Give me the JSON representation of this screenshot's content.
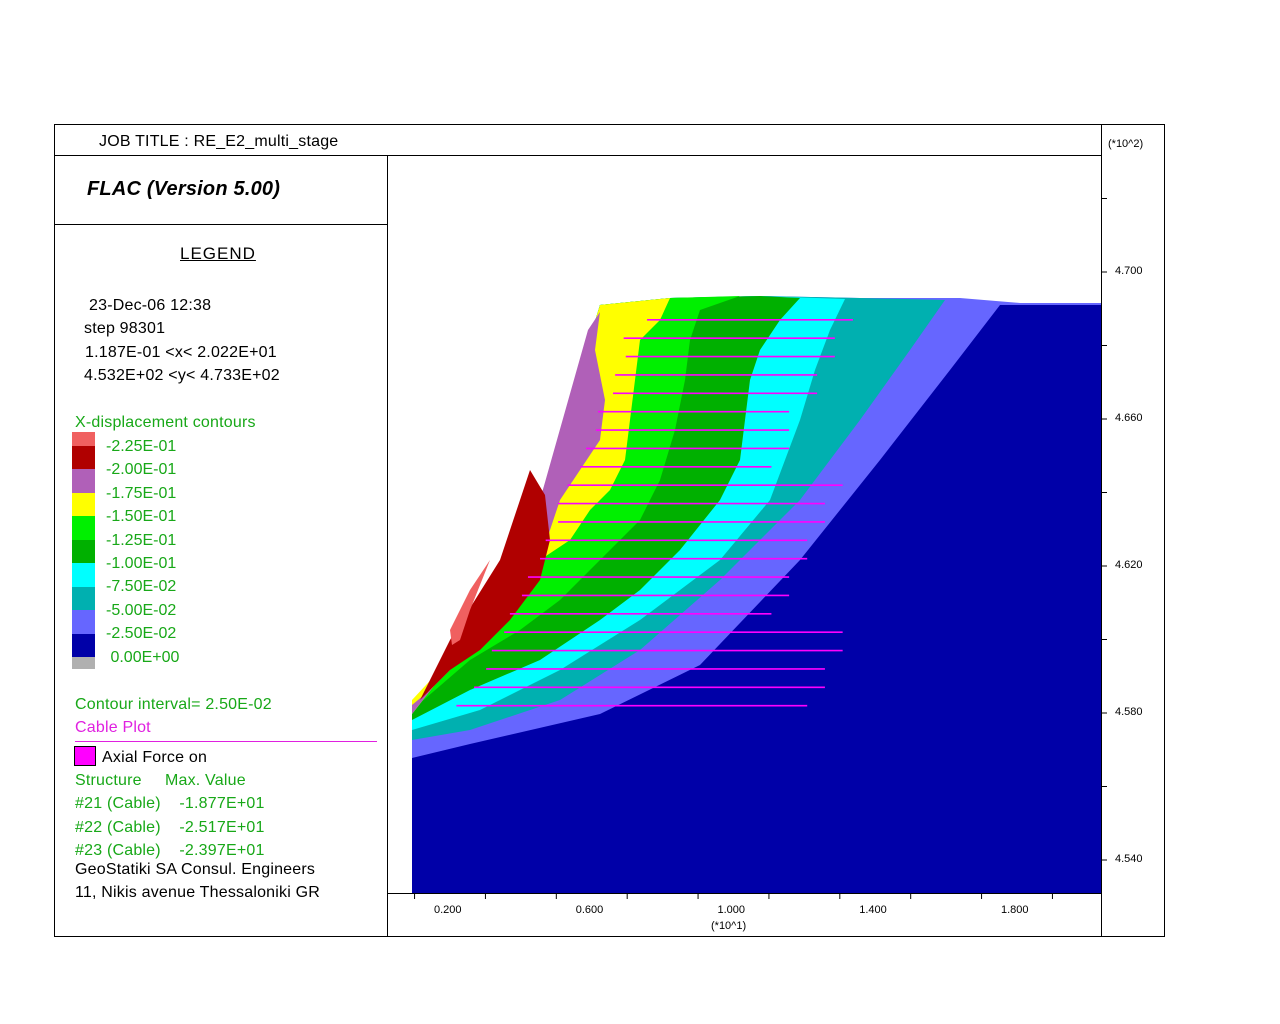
{
  "header": {
    "job_title": "JOB TITLE : RE_E2_multi_stage",
    "program": "FLAC (Version 5.00)"
  },
  "legend": {
    "heading": "LEGEND",
    "date": "23-Dec-06  12:38",
    "step": "step    98301",
    "x_range": "1.187E-01 <x<  2.022E+01",
    "y_range": "4.532E+02 <y<  4.733E+02",
    "contour_title": "X-displacement contours",
    "contours": [
      {
        "label": "-2.25E-01",
        "color": "#f06060"
      },
      {
        "label": "-2.00E-01",
        "color": "#b00000"
      },
      {
        "label": "-1.75E-01",
        "color": "#b060b8"
      },
      {
        "label": "-1.50E-01",
        "color": "#ffff00"
      },
      {
        "label": "-1.25E-01",
        "color": "#00f000"
      },
      {
        "label": "-1.00E-01",
        "color": "#00b000"
      },
      {
        "label": "-7.50E-02",
        "color": "#00ffff"
      },
      {
        "label": "-5.00E-02",
        "color": "#00b0b0"
      },
      {
        "label": "-2.50E-02",
        "color": "#6666ff"
      },
      {
        "label": " 0.00E+00",
        "color": "#0000a8"
      }
    ],
    "below_color": "#b0b0b0",
    "contour_interval": "Contour interval=  2.50E-02",
    "cable_plot": "Cable Plot",
    "axial_force": "Axial Force on",
    "axial_color": "#ff00ff",
    "structure_header": "Structure     Max. Value",
    "structures": [
      "#21 (Cable)    -1.877E+01",
      "#22 (Cable)    -2.517E+01",
      "#23 (Cable)    -2.397E+01"
    ],
    "company": "GeoStatiki SA Consul. Engineers",
    "address": "11, Nikis avenue Thessaloniki GR"
  },
  "chart_data": {
    "type": "contour",
    "quantity": "X-displacement",
    "x_axis": {
      "multiplier": "(*10^1)",
      "ticks": [
        "0.200",
        "0.600",
        "1.000",
        "1.400",
        "1.800"
      ],
      "tick_values": [
        0.2,
        0.6,
        1.0,
        1.4,
        1.8
      ],
      "range": [
        0.0119,
        2.022
      ]
    },
    "y_axis": {
      "multiplier": "(*10^2)",
      "ticks": [
        "4.700",
        "4.660",
        "4.620",
        "4.580",
        "4.540"
      ],
      "tick_values": [
        4.7,
        4.66,
        4.62,
        4.58,
        4.54
      ],
      "range": [
        4.532,
        4.733
      ]
    },
    "contour_levels": [
      -0.225,
      -0.2,
      -0.175,
      -0.15,
      -0.125,
      -0.1,
      -0.075,
      -0.05,
      -0.025,
      0.0
    ],
    "cable_color": "#ff00ff",
    "cables": [
      {
        "y": 4.687,
        "x_start": 0.756,
        "x_end": 1.337
      },
      {
        "y": 4.682,
        "x_start": 0.69,
        "x_end": 1.286
      },
      {
        "y": 4.677,
        "x_start": 0.696,
        "x_end": 1.286
      },
      {
        "y": 4.672,
        "x_start": 0.666,
        "x_end": 1.236
      },
      {
        "y": 4.667,
        "x_start": 0.66,
        "x_end": 1.236
      },
      {
        "y": 4.662,
        "x_start": 0.618,
        "x_end": 1.157
      },
      {
        "y": 4.657,
        "x_start": 0.612,
        "x_end": 1.157
      },
      {
        "y": 4.652,
        "x_start": 0.584,
        "x_end": 1.157
      },
      {
        "y": 4.647,
        "x_start": 0.567,
        "x_end": 1.107
      },
      {
        "y": 4.642,
        "x_start": 0.532,
        "x_end": 1.308
      },
      {
        "y": 4.637,
        "x_start": 0.505,
        "x_end": 1.258
      },
      {
        "y": 4.632,
        "x_start": 0.505,
        "x_end": 1.258
      },
      {
        "y": 4.627,
        "x_start": 0.47,
        "x_end": 1.208
      },
      {
        "y": 4.622,
        "x_start": 0.454,
        "x_end": 1.208
      },
      {
        "y": 4.617,
        "x_start": 0.42,
        "x_end": 1.157
      },
      {
        "y": 4.612,
        "x_start": 0.403,
        "x_end": 1.157
      },
      {
        "y": 4.607,
        "x_start": 0.369,
        "x_end": 1.107
      },
      {
        "y": 4.602,
        "x_start": 0.353,
        "x_end": 1.308
      },
      {
        "y": 4.597,
        "x_start": 0.318,
        "x_end": 1.308
      },
      {
        "y": 4.592,
        "x_start": 0.302,
        "x_end": 1.258
      },
      {
        "y": 4.587,
        "x_start": 0.268,
        "x_end": 1.258
      },
      {
        "y": 4.582,
        "x_start": 0.218,
        "x_end": 1.208
      }
    ]
  }
}
